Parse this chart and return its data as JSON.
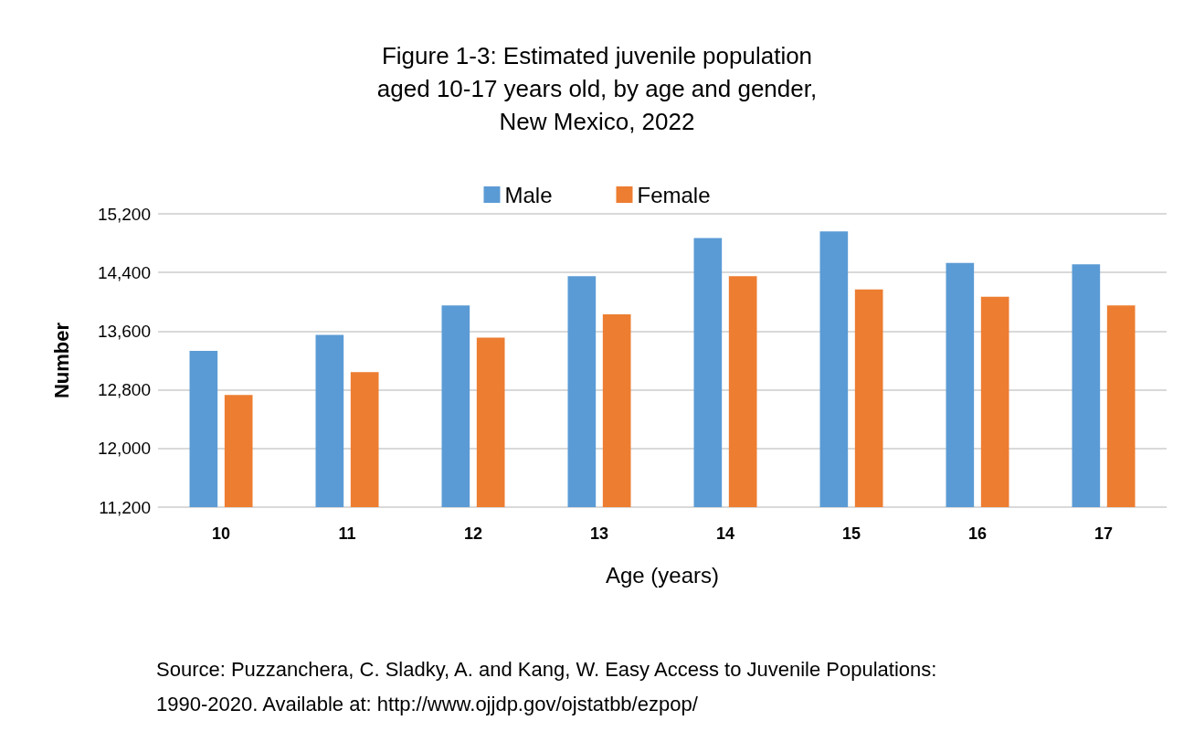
{
  "chart_data": {
    "type": "bar",
    "title": "Figure 1-3: Estimated juvenile population\naged 10-17 years old, by age and gender,\nNew Mexico, 2022",
    "xlabel": "Age (years)",
    "ylabel": "Number",
    "categories": [
      "10",
      "11",
      "12",
      "13",
      "14",
      "15",
      "16",
      "17"
    ],
    "series": [
      {
        "name": "Male",
        "color": "#5b9bd5",
        "values": [
          13330,
          13550,
          13950,
          14350,
          14870,
          14960,
          14530,
          14510
        ]
      },
      {
        "name": "Female",
        "color": "#ed7d31",
        "values": [
          12730,
          13040,
          13510,
          13830,
          14350,
          14170,
          14070,
          13950
        ]
      }
    ],
    "ylim": [
      11200,
      15200
    ],
    "yticks": [
      {
        "value": 11200,
        "label": "11,200"
      },
      {
        "value": 12000,
        "label": "12,000"
      },
      {
        "value": 12800,
        "label": "12,800"
      },
      {
        "value": 13600,
        "label": "13,600"
      },
      {
        "value": 14400,
        "label": "14,400"
      },
      {
        "value": 15200,
        "label": "15,200"
      }
    ],
    "grid": "y",
    "legend": "top",
    "annotations": [
      "Source: Puzzanchera, C. Sladky, A. and Kang, W. Easy Access to Juvenile Populations:\n1990-2020. Available at: http://www.ojjdp.gov/ojstatbb/ezpop/"
    ]
  }
}
